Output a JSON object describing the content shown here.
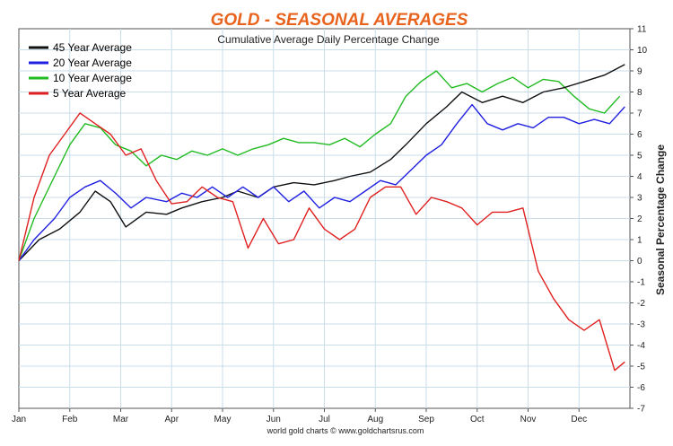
{
  "chart_data": {
    "type": "line",
    "title": "GOLD - SEASONAL AVERAGES",
    "subtitle": "Cumulative Average Daily Percentage Change",
    "ylabel": "Seasonal Percentage Change",
    "xlabel": "",
    "footer": "world gold charts © www.goldchartsrus.com",
    "ylim": [
      -7,
      11
    ],
    "y_ticks": [
      "11",
      "10",
      "9",
      "8",
      "7",
      "6",
      "5",
      "4",
      "3",
      "2",
      "1",
      "0",
      "-1",
      "-2",
      "-3",
      "-4",
      "-5",
      "-6",
      "-7"
    ],
    "x_ticks": [
      "Jan",
      "Feb",
      "Mar",
      "Apr",
      "May",
      "Jun",
      "Jul",
      "Aug",
      "Sep",
      "Oct",
      "Nov",
      "Dec"
    ],
    "grid": true,
    "legend_position": "top-left",
    "colors": {
      "title": "#e8641e",
      "black": "#111111",
      "blue": "#2020e0",
      "green": "#22bb22",
      "red": "#e02020",
      "grid": "#c9dde9"
    },
    "series": [
      {
        "name": "45 Year Average",
        "color": "#111111",
        "x": [
          0,
          0.4,
          0.8,
          1.2,
          1.5,
          1.8,
          2.1,
          2.5,
          2.9,
          3.2,
          3.6,
          4.0,
          4.3,
          4.7,
          5.0,
          5.4,
          5.8,
          6.2,
          6.5,
          6.9,
          7.3,
          7.6,
          8.0,
          8.4,
          8.7,
          9.1,
          9.5,
          9.9,
          10.3,
          10.7,
          11.1,
          11.5,
          11.9
        ],
        "y": [
          0,
          1.0,
          1.5,
          2.3,
          3.3,
          2.8,
          1.6,
          2.3,
          2.2,
          2.5,
          2.8,
          3.0,
          3.3,
          3.0,
          3.5,
          3.7,
          3.6,
          3.8,
          4.0,
          4.2,
          4.8,
          5.5,
          6.5,
          7.3,
          8.0,
          7.5,
          7.8,
          7.5,
          8.0,
          8.2,
          8.5,
          8.8,
          9.3
        ]
      },
      {
        "name": "20 Year Average",
        "color": "#2020e0",
        "x": [
          0,
          0.3,
          0.7,
          1.0,
          1.3,
          1.6,
          1.9,
          2.2,
          2.5,
          2.9,
          3.2,
          3.5,
          3.8,
          4.1,
          4.4,
          4.7,
          5.0,
          5.3,
          5.6,
          5.9,
          6.2,
          6.5,
          6.8,
          7.1,
          7.4,
          7.7,
          8.0,
          8.3,
          8.6,
          8.9,
          9.2,
          9.5,
          9.8,
          10.1,
          10.4,
          10.7,
          11.0,
          11.3,
          11.6,
          11.9
        ],
        "y": [
          0,
          1.0,
          2.0,
          3.0,
          3.5,
          3.8,
          3.2,
          2.5,
          3.0,
          2.8,
          3.2,
          3.0,
          3.5,
          3.0,
          3.5,
          3.0,
          3.5,
          2.8,
          3.3,
          2.5,
          3.0,
          2.8,
          3.3,
          3.8,
          3.6,
          4.3,
          5.0,
          5.5,
          6.5,
          7.4,
          6.5,
          6.2,
          6.5,
          6.3,
          6.8,
          6.8,
          6.5,
          6.7,
          6.5,
          7.3
        ]
      },
      {
        "name": "10 Year Average",
        "color": "#22bb22",
        "x": [
          0,
          0.3,
          0.7,
          1.0,
          1.3,
          1.6,
          1.9,
          2.2,
          2.5,
          2.8,
          3.1,
          3.4,
          3.7,
          4.0,
          4.3,
          4.6,
          4.9,
          5.2,
          5.5,
          5.8,
          6.1,
          6.4,
          6.7,
          7.0,
          7.3,
          7.6,
          7.9,
          8.2,
          8.5,
          8.8,
          9.1,
          9.4,
          9.7,
          10.0,
          10.3,
          10.6,
          10.9,
          11.2,
          11.5,
          11.8
        ],
        "y": [
          0,
          2.0,
          4.0,
          5.5,
          6.5,
          6.3,
          5.5,
          5.2,
          4.5,
          5.0,
          4.8,
          5.2,
          5.0,
          5.3,
          5.0,
          5.3,
          5.5,
          5.8,
          5.6,
          5.6,
          5.5,
          5.8,
          5.4,
          6.0,
          6.5,
          7.8,
          8.5,
          9.0,
          8.2,
          8.4,
          8.0,
          8.4,
          8.7,
          8.2,
          8.6,
          8.5,
          7.8,
          7.2,
          7.0,
          7.8
        ]
      },
      {
        "name": "5 Year Average",
        "color": "#e02020",
        "x": [
          0,
          0.3,
          0.6,
          0.9,
          1.2,
          1.5,
          1.8,
          2.1,
          2.4,
          2.7,
          3.0,
          3.3,
          3.6,
          3.9,
          4.2,
          4.5,
          4.8,
          5.1,
          5.4,
          5.7,
          6.0,
          6.3,
          6.6,
          6.9,
          7.2,
          7.5,
          7.8,
          8.1,
          8.4,
          8.7,
          9.0,
          9.3,
          9.6,
          9.9,
          10.2,
          10.5,
          10.8,
          11.1,
          11.4,
          11.7,
          11.9
        ],
        "y": [
          0,
          3.0,
          5.0,
          6.0,
          7.0,
          6.5,
          6.0,
          5.0,
          5.3,
          3.8,
          2.7,
          2.8,
          3.5,
          3.0,
          2.8,
          0.6,
          2.0,
          0.8,
          1.0,
          2.5,
          1.5,
          1.0,
          1.5,
          3.0,
          3.5,
          3.5,
          2.2,
          3.0,
          2.8,
          2.5,
          1.7,
          2.3,
          2.3,
          2.5,
          -0.5,
          -1.8,
          -2.8,
          -3.3,
          -2.8,
          -5.2,
          -4.8
        ]
      }
    ]
  }
}
